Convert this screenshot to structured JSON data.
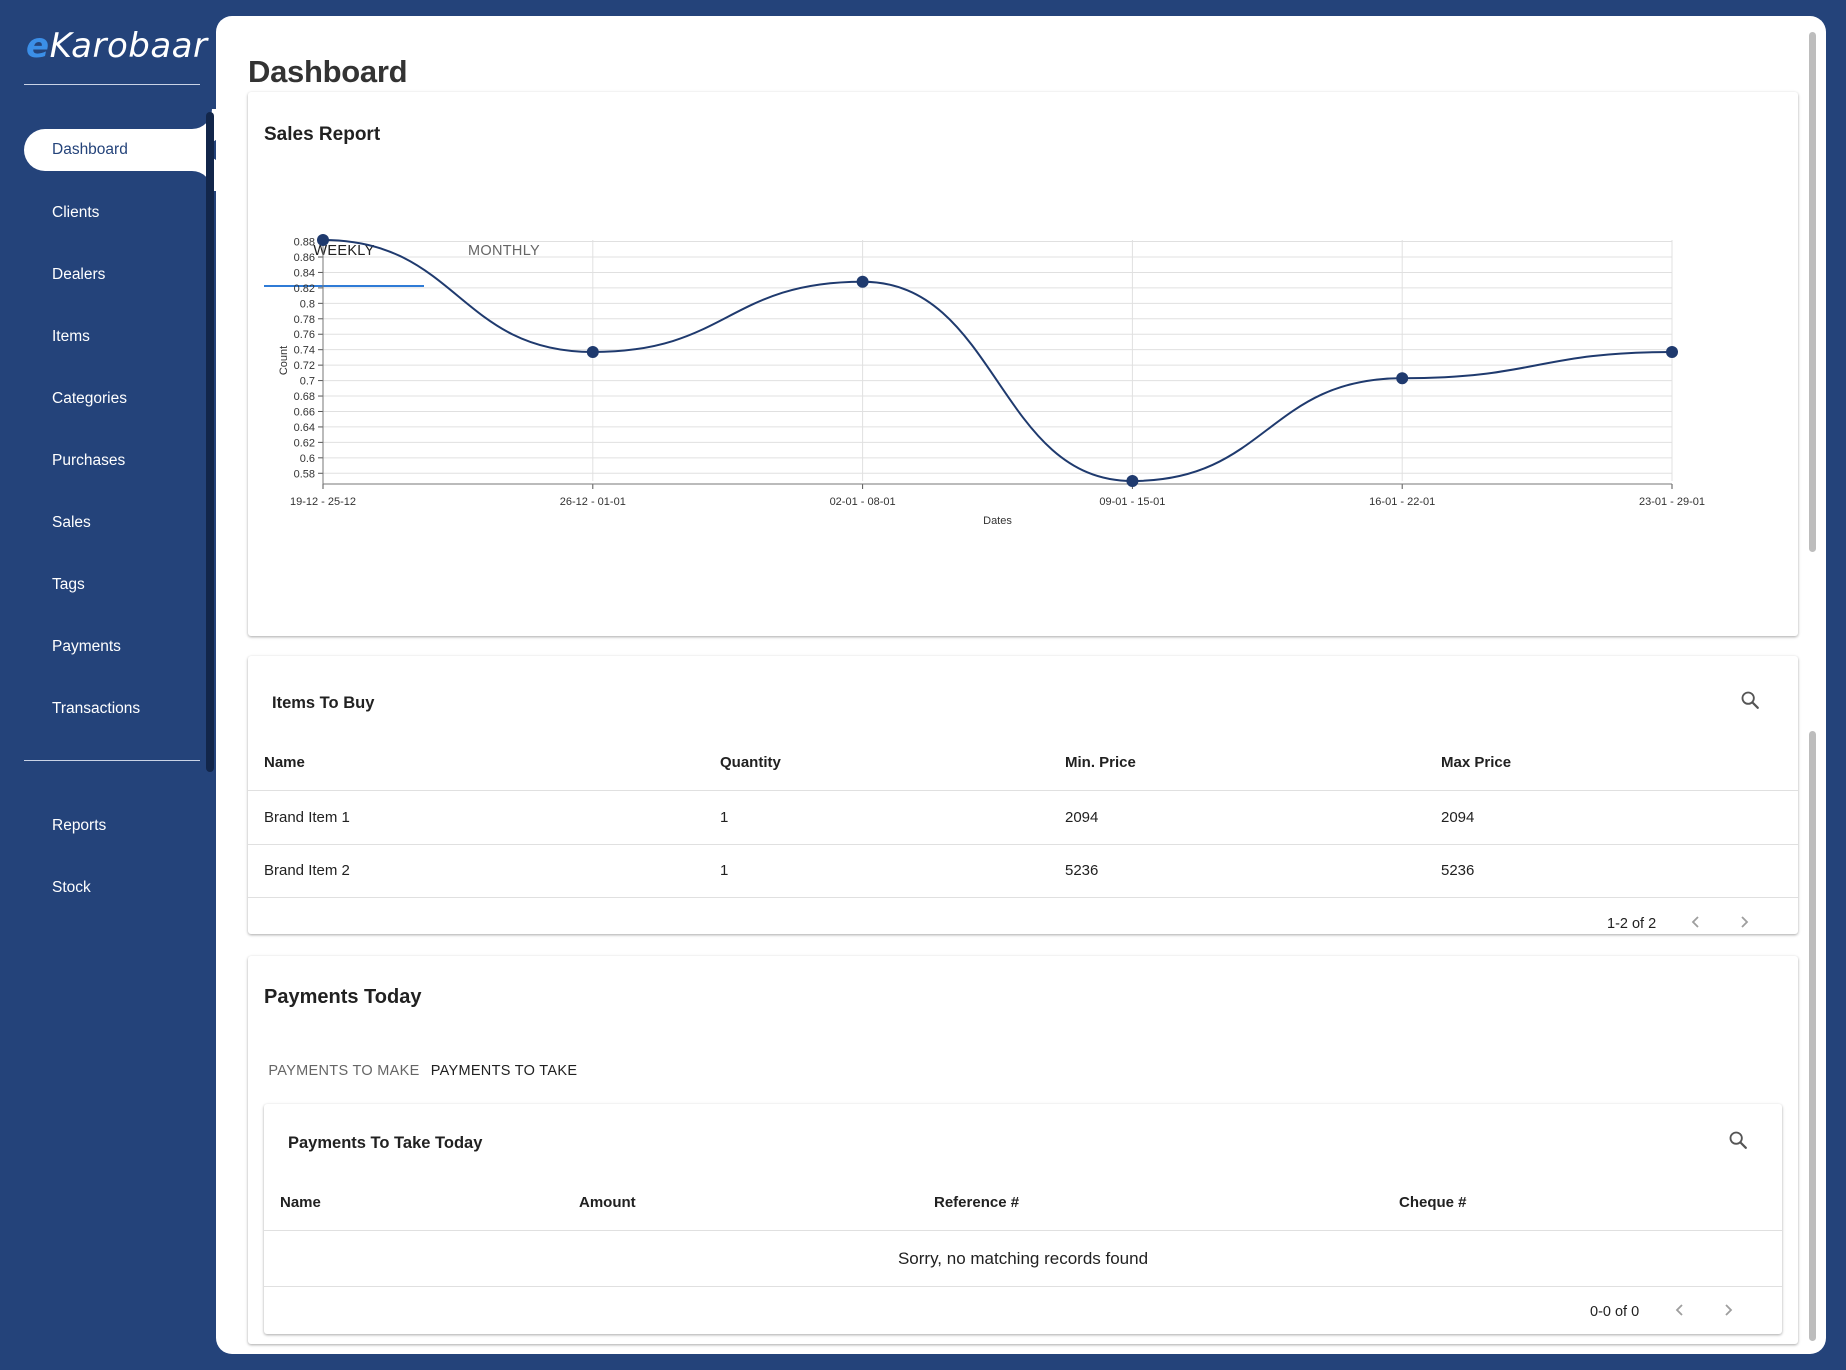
{
  "app": {
    "logo_e": "e",
    "logo_rest": "Karobaar"
  },
  "sidebar": {
    "items": [
      {
        "label": "Dashboard",
        "active": true
      },
      {
        "label": "Clients"
      },
      {
        "label": "Dealers"
      },
      {
        "label": "Items"
      },
      {
        "label": "Categories"
      },
      {
        "label": "Purchases"
      },
      {
        "label": "Sales"
      },
      {
        "label": "Tags"
      },
      {
        "label": "Payments"
      },
      {
        "label": "Transactions"
      }
    ],
    "bottom_items": [
      {
        "label": "Reports"
      },
      {
        "label": "Stock"
      }
    ]
  },
  "page": {
    "title": "Dashboard"
  },
  "sales_report": {
    "title": "Sales Report",
    "tabs": [
      {
        "label": "WEEKLY",
        "active": true
      },
      {
        "label": "MONTHLY",
        "active": false
      }
    ]
  },
  "chart_data": {
    "type": "line",
    "x": [
      "19-12 - 25-12",
      "26-12 - 01-01",
      "02-01 - 08-01",
      "09-01 - 15-01",
      "16-01 - 22-01",
      "23-01 - 29-01"
    ],
    "series": [
      {
        "values": [
          0.882,
          0.737,
          0.828,
          0.57,
          0.703,
          0.737
        ]
      }
    ],
    "yticks": [
      0.58,
      0.6,
      0.62,
      0.64,
      0.66,
      0.68,
      0.7,
      0.72,
      0.74,
      0.76,
      0.78,
      0.8,
      0.82,
      0.84,
      0.86,
      0.88
    ],
    "ytick_labels": [
      "0.58",
      "0.6",
      "0.62",
      "0.64",
      "0.66",
      "0.68",
      "0.7",
      "0.72",
      "0.74",
      "0.76",
      "0.78",
      "0.8",
      "0.82",
      "0.84",
      "0.86",
      "0.88"
    ],
    "ylim": [
      0.57,
      0.882
    ],
    "xlabel": "Dates",
    "ylabel": "Count",
    "grid": true,
    "line_color": "#1f3a6e"
  },
  "items_to_buy": {
    "title": "Items To Buy",
    "columns": [
      "Name",
      "Quantity",
      "Min. Price",
      "Max Price"
    ],
    "rows": [
      [
        "Brand Item 1",
        "1",
        "2094",
        "2094"
      ],
      [
        "Brand Item 2",
        "1",
        "5236",
        "5236"
      ]
    ],
    "pagination": "1-2 of 2"
  },
  "payments_today": {
    "title": "Payments Today",
    "tabs": [
      {
        "label": "PAYMENTS TO MAKE",
        "active": false
      },
      {
        "label": "PAYMENTS TO TAKE",
        "active": true
      }
    ],
    "table": {
      "title": "Payments To Take Today",
      "columns": [
        "Name",
        "Amount",
        "Reference #",
        "Cheque #"
      ],
      "empty_message": "Sorry, no matching records found",
      "pagination": "0-0 of 0"
    }
  },
  "colors": {
    "sidebar_bg": "#24437a",
    "accent": "#2f7bd6",
    "chart_line": "#1f3a6e"
  },
  "icons": {
    "search": "search-icon",
    "prev": "chevron-left-icon",
    "next": "chevron-right-icon"
  }
}
